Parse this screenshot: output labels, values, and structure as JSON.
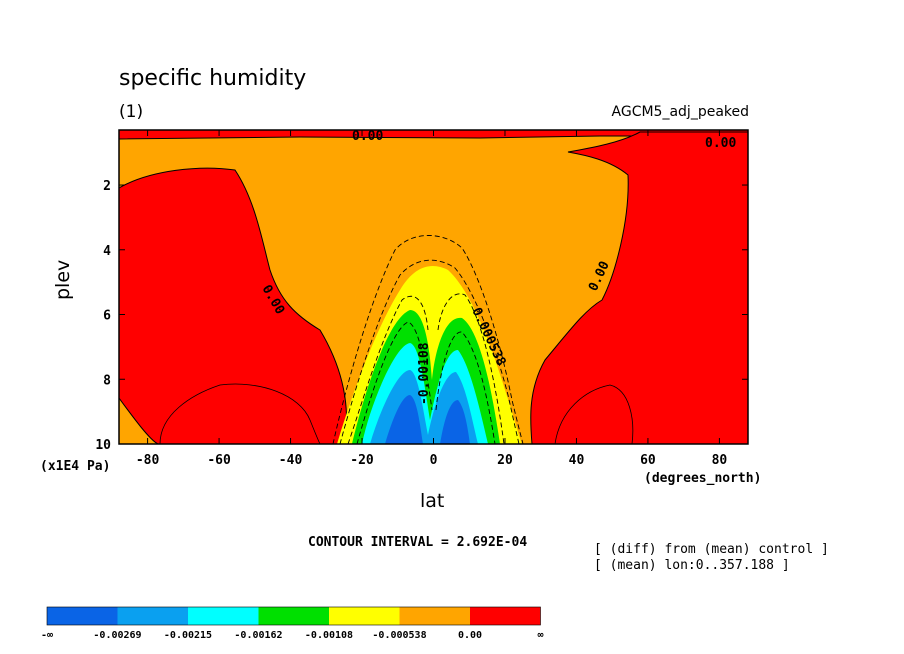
{
  "title": "specific humidity",
  "panel_label": "(1)",
  "run_label": "AGCM5_adj_peaked",
  "contour_interval": "CONTOUR INTERVAL = 2.692E-04",
  "notes": [
    "[ (diff) from (mean) control ]",
    "[ (mean) lon:0..357.188 ]"
  ],
  "chart_data": {
    "type": "contour",
    "title": "specific humidity",
    "xlabel": "lat",
    "x_unit": "(degrees_north)",
    "ylabel": "plev",
    "y_unit": "(x1E4 Pa)",
    "xlim": [
      -88,
      88
    ],
    "ylim": [
      10,
      0.3
    ],
    "y_inverted": true,
    "x_ticks": [
      -80,
      -60,
      -40,
      -20,
      0,
      20,
      40,
      60,
      80
    ],
    "y_ticks": [
      2,
      4,
      6,
      8,
      10
    ],
    "contour_labels": [
      "0.00",
      "0.00",
      "0.00",
      "0.00",
      "0.000538",
      "-0.00108"
    ],
    "colorbar": {
      "bins": [
        "-∞",
        "-0.00269",
        "-0.00215",
        "-0.00162",
        "-0.00108",
        "-0.000538",
        "0.00",
        "∞"
      ],
      "colors": [
        "#0a64e6",
        "#0aa0f0",
        "#00ffff",
        "#00e000",
        "#ffff00",
        "#ffa500",
        "#ff0000"
      ]
    }
  }
}
